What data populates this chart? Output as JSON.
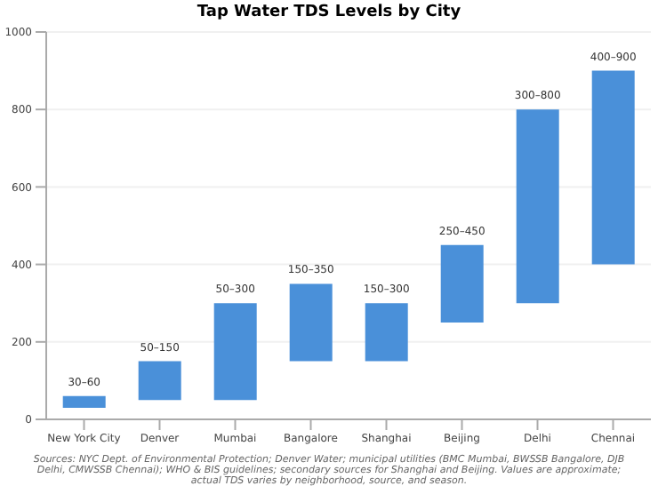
{
  "chart_data": {
    "type": "bar",
    "title": "Tap Water TDS Levels by City",
    "categories": [
      "New York City",
      "Denver",
      "Mumbai",
      "Bangalore",
      "Shanghai",
      "Beijing",
      "Delhi",
      "Chennai"
    ],
    "base": [
      30,
      50,
      50,
      150,
      150,
      250,
      300,
      400
    ],
    "values": [
      30,
      100,
      250,
      200,
      150,
      200,
      500,
      500
    ],
    "color": "#4a90d9",
    "value_labels": [
      "30–60",
      "50–150",
      "50–300",
      "150–350",
      "150–300",
      "250–450",
      "300–800",
      "400–900"
    ],
    "ylim": [
      0,
      1000
    ],
    "yticks": [
      0,
      200,
      400,
      600,
      800,
      1000
    ],
    "grid": "y",
    "annotations": [
      "Sources: NYC Dept. of Environmental Protection; Denver Water; municipal utilities (BMC Mumbai, BWSSB Bangalore, DJB Delhi, CMWSSB Chennai); WHO & BIS guidelines; secondary sources for Shanghai and Beijing. Values are approximate; actual TDS varies by neighborhood, source, and season."
    ]
  }
}
